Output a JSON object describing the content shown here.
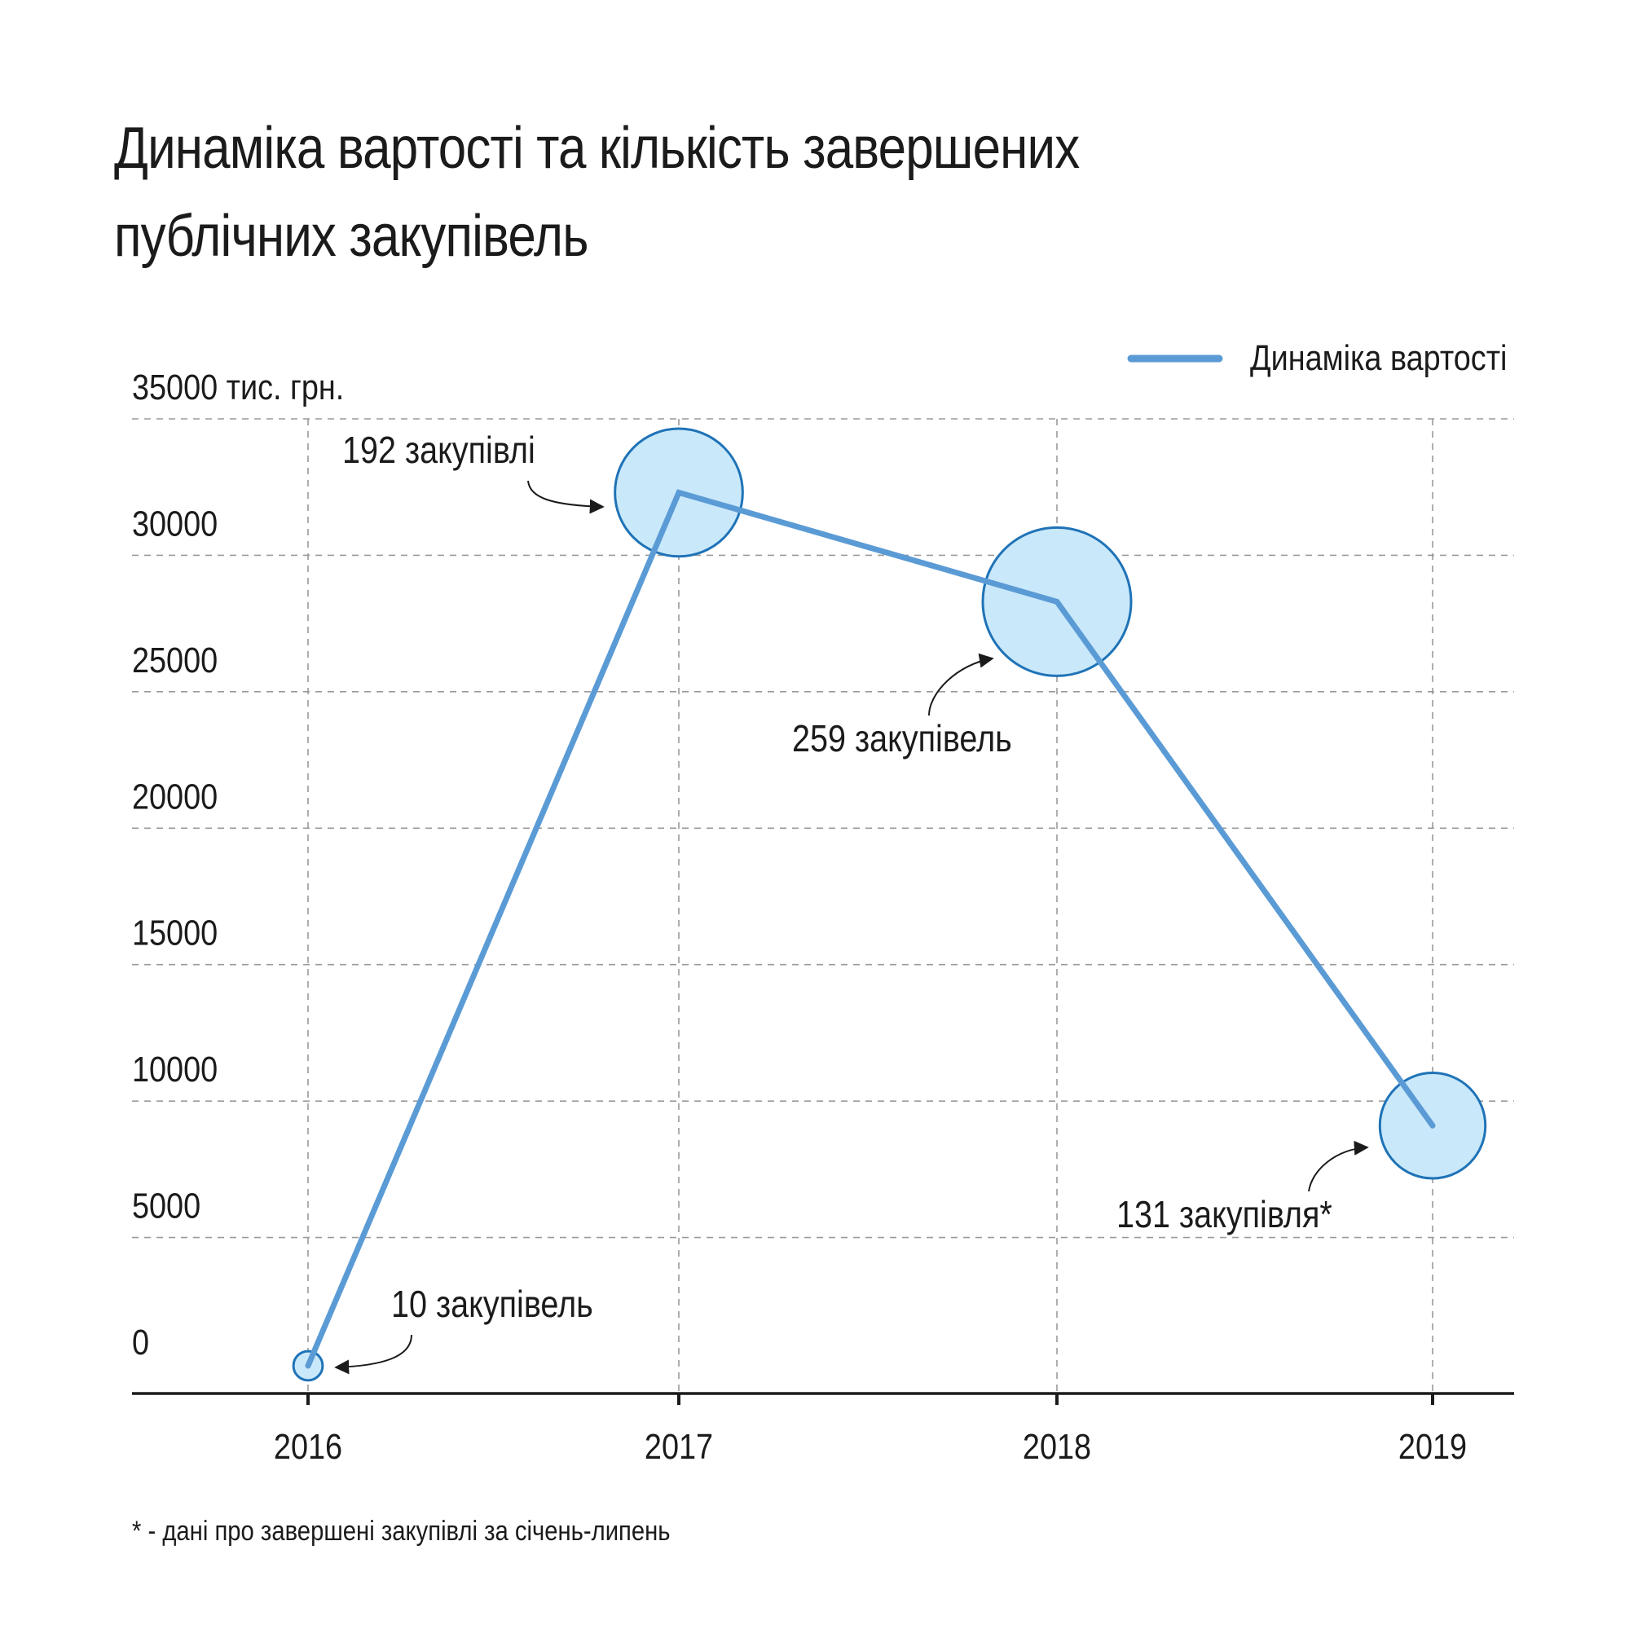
{
  "title_line1": "Динаміка вартості та кількість завершених",
  "title_line2": "публічних закупівель",
  "footnote": "* - дані про завершені закупівлі за січень-липень",
  "colors": {
    "line": "#5b9bd5",
    "bubble_fill": "#c9e8fa",
    "bubble_stroke": "#1f73b7",
    "grid": "#9a9a9a",
    "axis": "#1b1b1b"
  },
  "chart_data": {
    "type": "line",
    "x": [
      "2016",
      "2017",
      "2018",
      "2019"
    ],
    "series": [
      {
        "name": "Динаміка вартості",
        "values": [
          300,
          32300,
          28300,
          9100
        ]
      }
    ],
    "bubbles": [
      {
        "x": "2016",
        "value": 300,
        "count": 10,
        "label": "10 закупівель"
      },
      {
        "x": "2017",
        "value": 32300,
        "count": 192,
        "label": "192 закупівлі"
      },
      {
        "x": "2018",
        "value": 28300,
        "count": 259,
        "label": "259 закупівель"
      },
      {
        "x": "2019",
        "value": 9100,
        "count": 131,
        "label": "131 закупівля*"
      }
    ],
    "ylim": [
      0,
      35000
    ],
    "yticks": [
      "0",
      "5000",
      "10000",
      "15000",
      "20000",
      "25000",
      "30000",
      "35000 тис. грн."
    ],
    "ytick_values": [
      0,
      5000,
      10000,
      15000,
      20000,
      25000,
      30000,
      35000
    ],
    "grid": true,
    "legend_position": "top-right"
  }
}
